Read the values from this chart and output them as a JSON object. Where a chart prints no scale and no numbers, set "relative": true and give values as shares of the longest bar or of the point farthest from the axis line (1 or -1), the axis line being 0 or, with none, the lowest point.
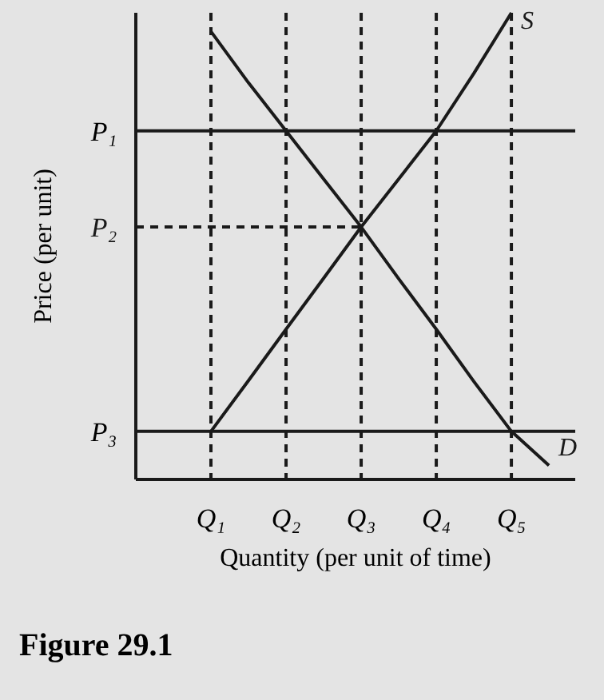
{
  "chart_data": {
    "type": "line",
    "title": "Figure 29.1",
    "xlabel": "Quantity (per unit of time)",
    "ylabel": "Price (per unit)",
    "relative": true,
    "grid": "x",
    "categories": [
      null,
      null,
      "Q₁",
      null,
      "Q₂",
      null,
      "Q₃",
      null,
      "Q₄",
      null,
      "Q₅",
      null
    ],
    "series": [
      {
        "name": "S",
        "color": "#1a1a1a",
        "values": [
          null,
          null,
          0.103,
          0.212,
          0.322,
          0.431,
          0.541,
          0.644,
          0.747,
          0.87,
          1,
          null
        ]
      },
      {
        "name": "D",
        "color": "#1a1a1a",
        "values": [
          null,
          null,
          0.96,
          0.85,
          0.747,
          0.644,
          0.541,
          0.43,
          0.322,
          0.21,
          0.103,
          0.03
        ]
      },
      {
        "name": "P₂",
        "color": "#1a1a1a",
        "values": [
          0.541,
          0.541,
          0.541,
          0.541,
          0.541,
          0.541,
          0.541,
          null,
          null,
          null,
          null,
          null
        ],
        "line_style": "dashed"
      }
    ],
    "ref_lines": [
      {
        "axis": "y",
        "value": 0.747,
        "label": "P₁",
        "color": "#1a1a1a",
        "line_style": "solid"
      },
      {
        "axis": "y",
        "value": 0.103,
        "label": "P₃",
        "color": "#1a1a1a",
        "line_style": "solid"
      }
    ]
  }
}
